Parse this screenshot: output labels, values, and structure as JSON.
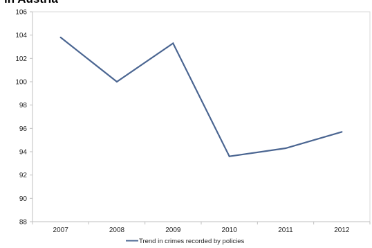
{
  "page": {
    "title_fragment": "in Austria"
  },
  "chart_data": {
    "type": "line",
    "title": "in Austria",
    "xlabel": "",
    "ylabel": "",
    "categories": [
      "2007",
      "2008",
      "2009",
      "2010",
      "2011",
      "2012"
    ],
    "series": [
      {
        "name": "Trend in crimes recorded by policies",
        "values": [
          103.8,
          100.0,
          103.3,
          93.6,
          94.3,
          95.7
        ],
        "color": "#4a6591"
      }
    ],
    "ylim": [
      88,
      106
    ],
    "ytick_step": 2,
    "yticks": [
      "88",
      "90",
      "92",
      "94",
      "96",
      "98",
      "100",
      "102",
      "104",
      "106"
    ],
    "grid": false,
    "legend_position": "bottom-center",
    "colors": {
      "axis": "#bfbfbf",
      "plot_border": "#d9d9d9",
      "line": "#4a6591",
      "text": "#222222"
    }
  }
}
